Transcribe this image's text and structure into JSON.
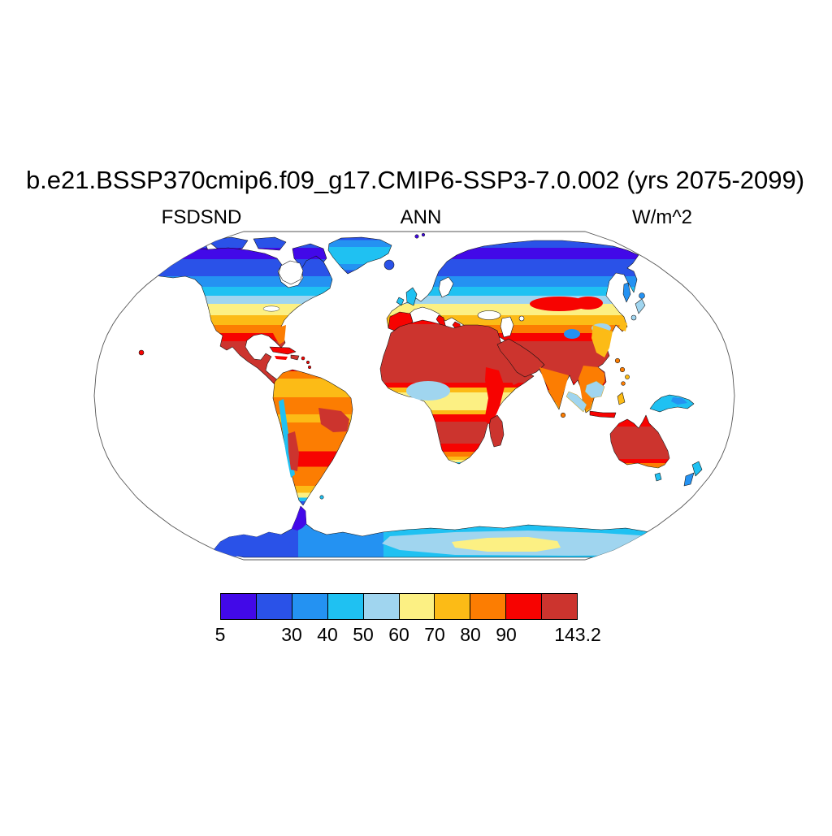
{
  "header": {
    "title": "b.e21.BSSP370cmip6.f09_g17.CMIP6-SSP3-7.0.002 (yrs 2075-2099)",
    "variable_label": "FSDSND",
    "season_label": "ANN",
    "units_label": "W/m^2"
  },
  "palette": [
    "#4209e8",
    "#2a52e8",
    "#2492f2",
    "#1fc1f2",
    "#a0d5ef",
    "#fcf083",
    "#fcbb16",
    "#fc7d02",
    "#f70301",
    "#cc342e"
  ],
  "colorbar": {
    "n_bins": 10,
    "ticks": [
      {
        "label": "5",
        "pos": 0
      },
      {
        "label": "30",
        "pos": 0.2
      },
      {
        "label": "40",
        "pos": 0.3
      },
      {
        "label": "50",
        "pos": 0.4
      },
      {
        "label": "60",
        "pos": 0.5
      },
      {
        "label": "70",
        "pos": 0.6
      },
      {
        "label": "80",
        "pos": 0.7
      },
      {
        "label": "90",
        "pos": 0.8
      },
      {
        "label": "143.2",
        "pos": 1
      }
    ]
  },
  "chart_data": {
    "type": "heatmap",
    "subtype": "filled-contour global map",
    "projection": "Robinson",
    "title": "b.e21.BSSP370cmip6.f09_g17.CMIP6-SSP3-7.0.002 (yrs 2075-2099)",
    "variable": "FSDSND",
    "season": "ANN",
    "units": "W/m^2",
    "value_min": 5,
    "value_max": 143.2,
    "colorbar_tick_labels": [
      "5",
      "30",
      "40",
      "50",
      "60",
      "70",
      "80",
      "90",
      "143.2"
    ],
    "legend_position": "bottom",
    "grid": false,
    "regional_values_wm2": [
      {
        "region": "Arctic coasts and Arctic islands",
        "approx_value": "5-30"
      },
      {
        "region": "Greenland interior",
        "approx_value": "30-50"
      },
      {
        "region": "Canada / Siberia 55-70N",
        "approx_value": "30-60"
      },
      {
        "region": "Northern mid-latitudes 45-55N (N US border, C Europe, S Siberia)",
        "approx_value": "60-80"
      },
      {
        "region": "US, Mediterranean, Central Asia 30-45N",
        "approx_value": "80-100"
      },
      {
        "region": "Sahara, Arabia, Mexico/SW US, Horn of Africa, Australia, E Brazil",
        "approx_value": "100-143.2"
      },
      {
        "region": "Equatorial Congo, Amazon, Indonesia maritime continent",
        "approx_value": "50-70"
      },
      {
        "region": "Southern South America tip, New Zealand",
        "approx_value": "20-50"
      },
      {
        "region": "Antarctic interior plateau",
        "approx_value": "50-70"
      },
      {
        "region": "Antarctic coast / West Antarctica",
        "approx_value": "10-40"
      }
    ]
  }
}
